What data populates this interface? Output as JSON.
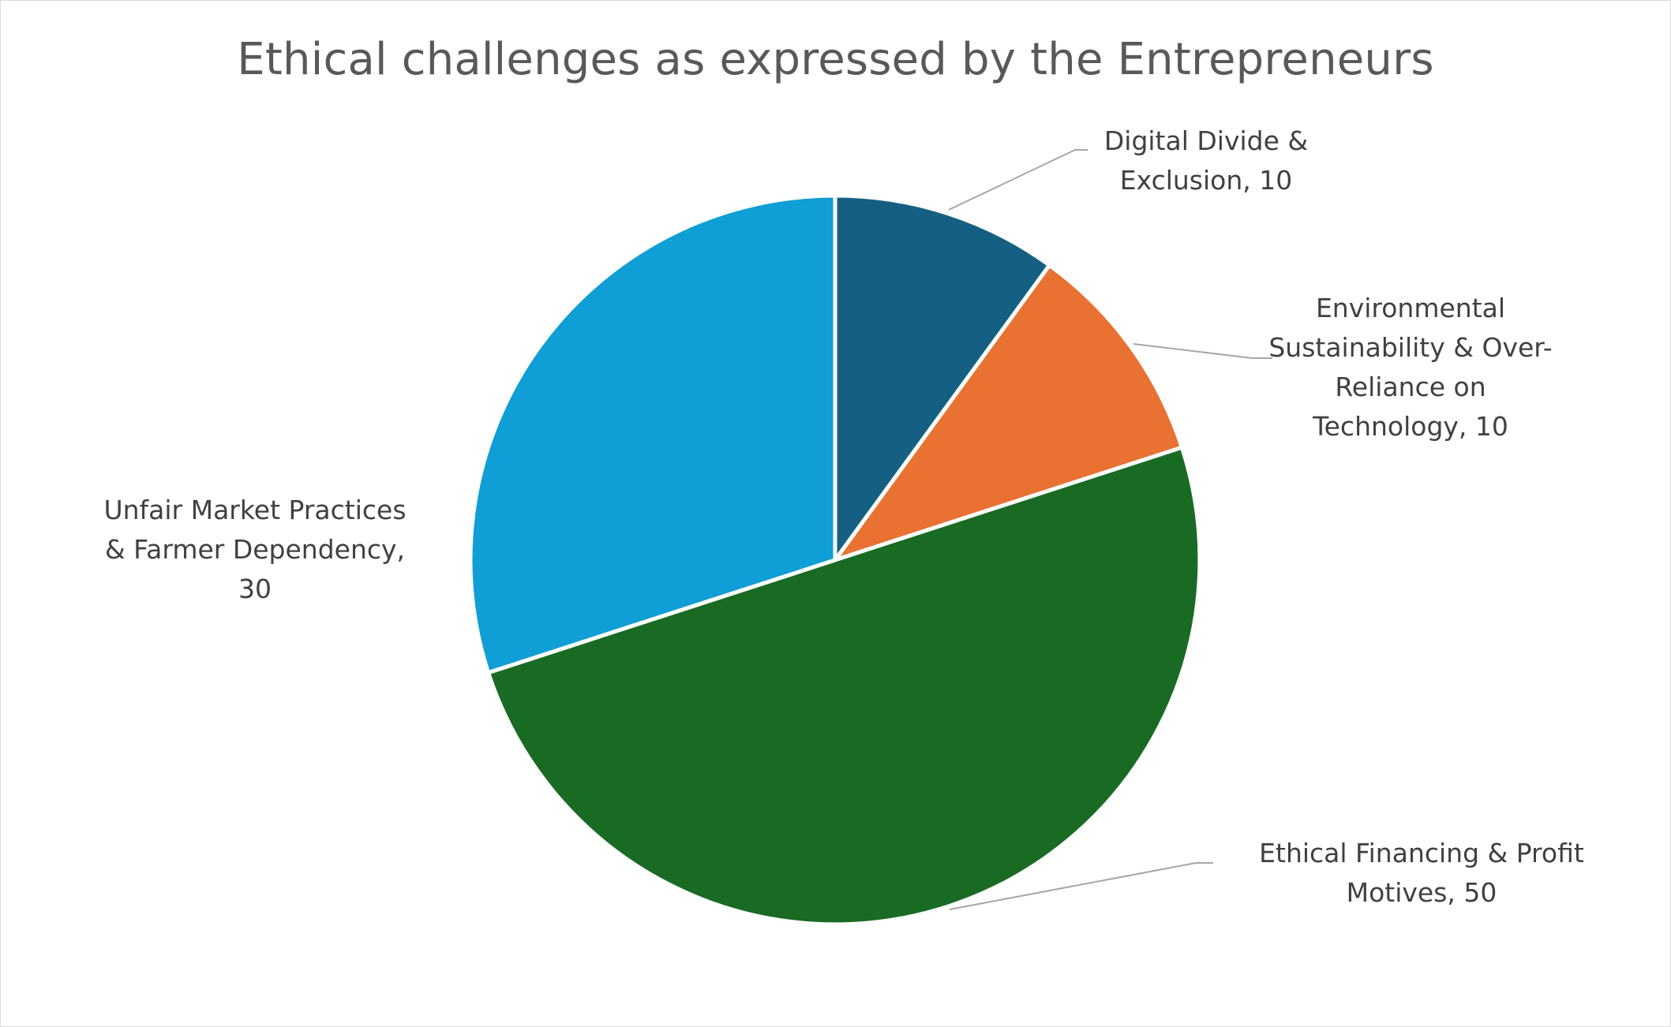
{
  "chart_data": {
    "type": "pie",
    "title": "Ethical challenges as expressed by the Entrepreneurs",
    "slices": [
      {
        "label_lines": [
          "Digital Divide &",
          "Exclusion, 10"
        ],
        "value": 10,
        "color": "#156082"
      },
      {
        "label_lines": [
          "Environmental",
          "Sustainability & Over-",
          "Reliance on",
          "Technology, 10"
        ],
        "value": 10,
        "color": "#E97132"
      },
      {
        "label_lines": [
          "Ethical Financing & Profit",
          "Motives, 50"
        ],
        "value": 50,
        "color": "#196B24"
      },
      {
        "label_lines": [
          "Unfair Market Practices",
          "& Farmer Dependency,",
          "30"
        ],
        "value": 30,
        "color": "#0F9ED5"
      }
    ],
    "legend": "none",
    "start_angle": "12 o'clock",
    "direction": "clockwise"
  }
}
